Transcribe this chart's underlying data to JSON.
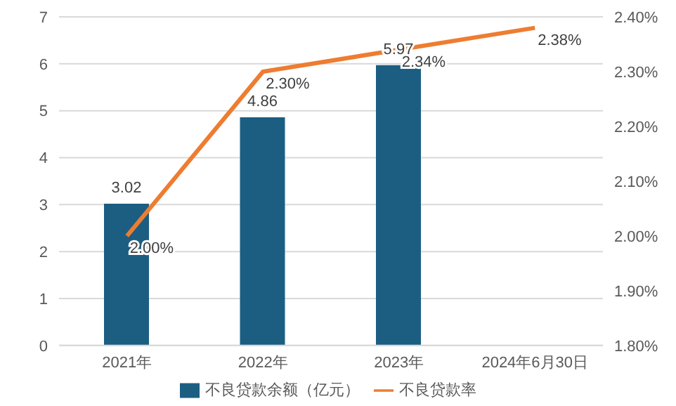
{
  "chart_data": {
    "type": "bar",
    "categories": [
      "2021年",
      "2022年",
      "2023年",
      "2024年6月30日"
    ],
    "series": [
      {
        "name": "不良贷款余额（亿元）",
        "color": "#1b5e82",
        "values": [
          3.02,
          4.86,
          5.97,
          null
        ],
        "value_labels": [
          "3.02",
          "4.86",
          "5.97",
          null
        ]
      },
      {
        "name": "不良贷款率",
        "type": "line",
        "axis": "y2",
        "color": "#ed7d31",
        "values": [
          2.0,
          2.3,
          2.34,
          2.38
        ],
        "value_labels": [
          "2.00%",
          "2.30%",
          "2.34%",
          "2.38%"
        ]
      }
    ],
    "ylim": [
      0,
      7
    ],
    "yticks": [
      0,
      1,
      2,
      3,
      4,
      5,
      6,
      7
    ],
    "y2lim": [
      1.8,
      2.4
    ],
    "y2ticks": [
      {
        "value": 1.8,
        "label": "1.80%"
      },
      {
        "value": 1.9,
        "label": "1.90%"
      },
      {
        "value": 2.0,
        "label": "2.00%"
      },
      {
        "value": 2.1,
        "label": "2.10%"
      },
      {
        "value": 2.2,
        "label": "2.20%"
      },
      {
        "value": 2.3,
        "label": "2.30%"
      },
      {
        "value": 2.4,
        "label": "2.40%"
      }
    ],
    "grid": "y",
    "legend": "bottom",
    "marker": "none",
    "line_style": "solid"
  }
}
